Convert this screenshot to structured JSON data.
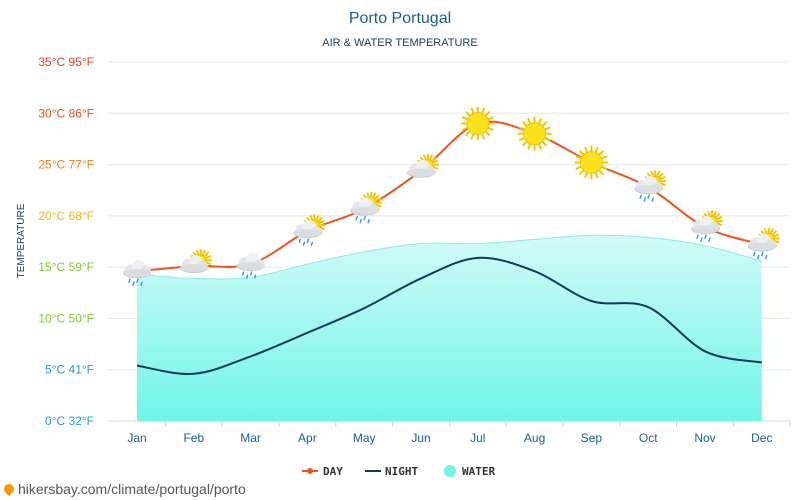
{
  "colors": {
    "day": "#f4511e",
    "night": "#123a5a",
    "water_fill": "#6ff5e8",
    "water_line": "#8ee8ee",
    "grid": "#e8e8e8",
    "sun": "#f9e21c"
  },
  "chart_data": {
    "type": "line",
    "title": "Porto Portugal",
    "subtitle": "AIR & WATER TEMPERATURE",
    "ylabel": "TEMPERATURE",
    "ylim": [
      0,
      35
    ],
    "yticks": [
      {
        "value": 0,
        "label": "0°C 32°F",
        "color": "#22a0c8"
      },
      {
        "value": 5,
        "label": "5°C 41°F",
        "color": "#22a0c8"
      },
      {
        "value": 10,
        "label": "10°C 50°F",
        "color": "#7ec832"
      },
      {
        "value": 15,
        "label": "15°C 59°F",
        "color": "#7ec832"
      },
      {
        "value": 20,
        "label": "20°C 68°F",
        "color": "#e8b820"
      },
      {
        "value": 25,
        "label": "25°C 77°F",
        "color": "#f08020"
      },
      {
        "value": 30,
        "label": "30°C 86°F",
        "color": "#e85020"
      },
      {
        "value": 35,
        "label": "35°C 95°F",
        "color": "#e84020"
      }
    ],
    "categories": [
      "Jan",
      "Feb",
      "Mar",
      "Apr",
      "May",
      "Jun",
      "Jul",
      "Aug",
      "Sep",
      "Oct",
      "Nov",
      "Dec"
    ],
    "series": [
      {
        "name": "DAY",
        "values": [
          14.6,
          15.1,
          15.3,
          18.5,
          20.7,
          24.4,
          29.0,
          28.0,
          25.2,
          22.8,
          18.9,
          17.2
        ]
      },
      {
        "name": "NIGHT",
        "values": [
          5.4,
          4.6,
          6.3,
          8.6,
          11.0,
          13.9,
          15.9,
          14.6,
          11.7,
          11.1,
          6.8,
          5.7
        ]
      },
      {
        "name": "WATER",
        "values": [
          14.3,
          13.9,
          14.0,
          15.3,
          16.5,
          17.3,
          17.3,
          17.7,
          18.1,
          17.9,
          17.1,
          15.6
        ]
      }
    ],
    "weather_icons": [
      "rain",
      "cloud-sun",
      "rain",
      "rain-sun",
      "rain-sun",
      "cloud-sun",
      "sun",
      "sun",
      "sun",
      "rain-sun",
      "rain-sun",
      "rain-sun"
    ],
    "legend": {
      "position": "bottom-center",
      "items": [
        "DAY",
        "NIGHT",
        "WATER"
      ]
    },
    "grid": true
  },
  "footer": {
    "text": "hikersbay.com/climate/portugal/porto"
  }
}
